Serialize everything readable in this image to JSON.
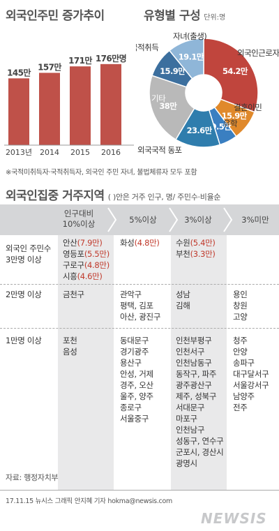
{
  "section1": {
    "title": "외국인주민 증가추이",
    "chart_data": {
      "type": "bar",
      "categories": [
        "2013년",
        "2014",
        "2015",
        "2016"
      ],
      "values": [
        145,
        157,
        171,
        176
      ],
      "value_labels": [
        "145만",
        "157만",
        "171만",
        "176만명"
      ],
      "color": "#bf5149"
    }
  },
  "section2": {
    "title": "유형별 구성",
    "unit": "단위:명",
    "chart_data": {
      "type": "pie",
      "slices": [
        {
          "label": "외국인근로자",
          "value": 54.2,
          "value_label": "54.2만",
          "color": "#c0453d"
        },
        {
          "label": "결혼이민",
          "value": 15.9,
          "value_label": "15.9만",
          "color": "#e0892b"
        },
        {
          "label": "유학",
          "value": 9.5,
          "value_label": "9.5만",
          "color": "#3a7fc1"
        },
        {
          "label": "외국국적 동포",
          "value": 23.6,
          "value_label": "23.6만",
          "color": "#2f7dad"
        },
        {
          "label": "기타",
          "value": 38,
          "value_label": "38만",
          "color": "#b9b9b9"
        },
        {
          "label": "국적취득",
          "value": 15.9,
          "value_label": "15.9만",
          "color": "#3c6f9e"
        },
        {
          "label": "자녀(출생)",
          "value": 19.1,
          "value_label": "19.1만",
          "color": "#8fb6d8"
        }
      ]
    }
  },
  "footnote": "※국적미취득자·국적취득자, 외국인 주민 자녀, 불법체류자 모두 포함",
  "section3": {
    "title": "외국인집중 거주지역",
    "subtitle": "( )안은 거주 인구, 명/ 주민수·비율순",
    "headers": [
      "인구대비\n10%이상",
      "5%이상",
      "3%이상",
      "3%미만"
    ],
    "rows": [
      {
        "label": "외국인 주민수\n3만명 이상",
        "cols": [
          [
            {
              "n": "안산",
              "v": "(7.9만)"
            },
            {
              "n": "영등포",
              "v": "(5.5만)"
            },
            {
              "n": "구로구",
              "v": "(4.8만)"
            },
            {
              "n": "시흥",
              "v": "(4.6만)"
            }
          ],
          [
            {
              "n": "화성",
              "v": "(4.8만)"
            }
          ],
          [
            {
              "n": "수원",
              "v": "(5.4만)"
            },
            {
              "n": "부천",
              "v": "(3.3만)"
            }
          ],
          []
        ]
      },
      {
        "label": "2만명 이상",
        "cols": [
          [
            "금천구"
          ],
          [
            "관악구",
            "평택, 김포",
            "아산, 광진구"
          ],
          [
            "성남",
            "김해"
          ],
          [
            "용인",
            "창원",
            "고양"
          ]
        ]
      },
      {
        "label": "1만명 이상",
        "cols": [
          [
            "포천",
            "음성"
          ],
          [
            "동대문구",
            "경기광주",
            "용산구",
            "안성, 거제",
            "경주, 오산",
            "울주, 양주",
            "종로구",
            "서울중구"
          ],
          [
            "인천부평구",
            "인천서구",
            "인천남동구",
            "동작구, 파주",
            "광주광산구",
            "제주, 성북구",
            "서대문구",
            "마포구",
            "인천남구",
            "성동구, 연수구",
            "군포시, 경산시",
            "광명시"
          ],
          [
            "청주",
            "안양",
            "송파구",
            "대구달서구",
            "서울강서구",
            "남양주",
            "전주"
          ]
        ]
      }
    ]
  },
  "source": "자료: 행정자치부",
  "credit": "17.11.15 뉴시스 그래픽 안지혜 기자 hokma@newsis.com",
  "logo": "NEWSIS"
}
